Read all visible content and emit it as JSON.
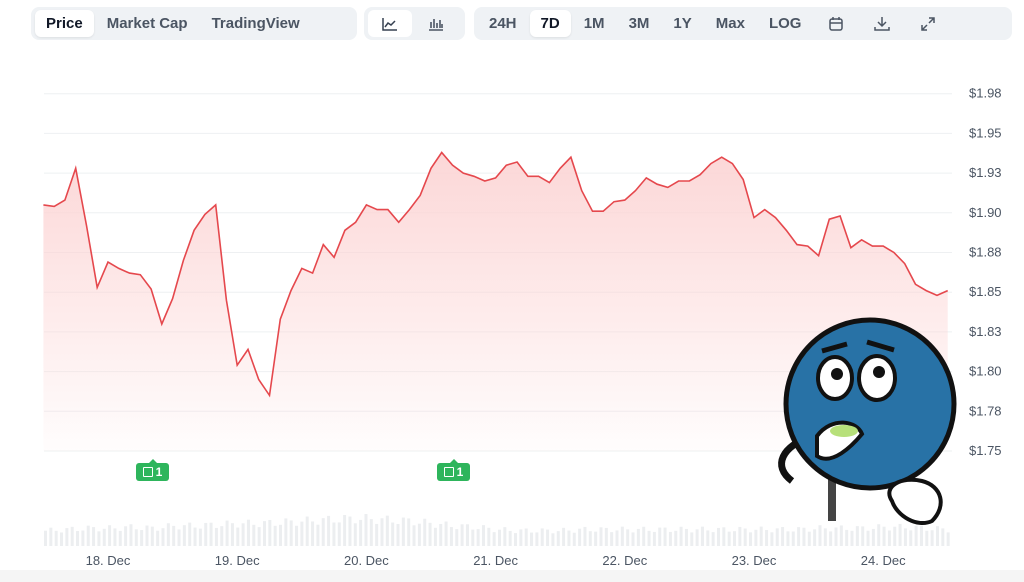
{
  "toolbar": {
    "view_tabs": [
      {
        "label": "Price",
        "active": true
      },
      {
        "label": "Market Cap",
        "active": false
      },
      {
        "label": "TradingView",
        "active": false
      }
    ],
    "chart_type_icons": [
      {
        "icon": "line-chart-icon",
        "active": true
      },
      {
        "icon": "candlestick-chart-icon",
        "active": false
      }
    ],
    "ranges": [
      {
        "label": "24H",
        "active": false
      },
      {
        "label": "7D",
        "active": true
      },
      {
        "label": "1M",
        "active": false
      },
      {
        "label": "3M",
        "active": false
      },
      {
        "label": "1Y",
        "active": false
      },
      {
        "label": "Max",
        "active": false
      },
      {
        "label": "LOG",
        "active": false
      }
    ],
    "action_icons": [
      "calendar-icon",
      "download-icon",
      "expand-icon"
    ]
  },
  "news_markers": [
    {
      "date": "18 Dec 08:00",
      "count": "1"
    },
    {
      "date": "20 Dec 20:00",
      "count": "1"
    }
  ],
  "chart_data": {
    "type": "area",
    "line_color": "#e5484d",
    "fill_color": "#fcd5d5",
    "grid": true,
    "ylim": [
      1.725,
      1.995
    ],
    "y_ticks": [
      {
        "v": 1.975,
        "label": "$1.98"
      },
      {
        "v": 1.95,
        "label": "$1.95"
      },
      {
        "v": 1.925,
        "label": "$1.93"
      },
      {
        "v": 1.9,
        "label": "$1.90"
      },
      {
        "v": 1.875,
        "label": "$1.88"
      },
      {
        "v": 1.85,
        "label": "$1.85"
      },
      {
        "v": 1.825,
        "label": "$1.83"
      },
      {
        "v": 1.8,
        "label": "$1.80"
      },
      {
        "v": 1.775,
        "label": "$1.78"
      },
      {
        "v": 1.75,
        "label": "$1.75"
      }
    ],
    "x_ticks": [
      "18. Dec",
      "19. Dec",
      "20. Dec",
      "21. Dec",
      "22. Dec",
      "23. Dec",
      "24. Dec"
    ],
    "points": [
      [
        "17 Dec 12:00",
        1.905
      ],
      [
        "17 Dec 14:00",
        1.904
      ],
      [
        "17 Dec 16:00",
        1.908
      ],
      [
        "17 Dec 18:00",
        1.928
      ],
      [
        "17 Dec 20:00",
        1.892
      ],
      [
        "17 Dec 22:00",
        1.853
      ],
      [
        "18 Dec 00:00",
        1.869
      ],
      [
        "18 Dec 02:00",
        1.865
      ],
      [
        "18 Dec 04:00",
        1.862
      ],
      [
        "18 Dec 06:00",
        1.861
      ],
      [
        "18 Dec 08:00",
        1.852
      ],
      [
        "18 Dec 10:00",
        1.83
      ],
      [
        "18 Dec 12:00",
        1.846
      ],
      [
        "18 Dec 14:00",
        1.87
      ],
      [
        "18 Dec 16:00",
        1.889
      ],
      [
        "18 Dec 18:00",
        1.899
      ],
      [
        "18 Dec 20:00",
        1.905
      ],
      [
        "18 Dec 22:00",
        1.845
      ],
      [
        "19 Dec 00:00",
        1.804
      ],
      [
        "19 Dec 02:00",
        1.814
      ],
      [
        "19 Dec 04:00",
        1.795
      ],
      [
        "19 Dec 06:00",
        1.785
      ],
      [
        "19 Dec 08:00",
        1.833
      ],
      [
        "19 Dec 10:00",
        1.851
      ],
      [
        "19 Dec 12:00",
        1.865
      ],
      [
        "19 Dec 14:00",
        1.862
      ],
      [
        "19 Dec 16:00",
        1.88
      ],
      [
        "19 Dec 18:00",
        1.872
      ],
      [
        "19 Dec 20:00",
        1.889
      ],
      [
        "19 Dec 22:00",
        1.894
      ],
      [
        "20 Dec 00:00",
        1.905
      ],
      [
        "20 Dec 02:00",
        1.902
      ],
      [
        "20 Dec 04:00",
        1.902
      ],
      [
        "20 Dec 06:00",
        1.894
      ],
      [
        "20 Dec 08:00",
        1.902
      ],
      [
        "20 Dec 10:00",
        1.911
      ],
      [
        "20 Dec 12:00",
        1.928
      ],
      [
        "20 Dec 14:00",
        1.938
      ],
      [
        "20 Dec 16:00",
        1.93
      ],
      [
        "20 Dec 18:00",
        1.925
      ],
      [
        "20 Dec 20:00",
        1.923
      ],
      [
        "20 Dec 22:00",
        1.92
      ],
      [
        "21 Dec 00:00",
        1.922
      ],
      [
        "21 Dec 02:00",
        1.93
      ],
      [
        "21 Dec 04:00",
        1.932
      ],
      [
        "21 Dec 06:00",
        1.923
      ],
      [
        "21 Dec 08:00",
        1.923
      ],
      [
        "21 Dec 10:00",
        1.919
      ],
      [
        "21 Dec 12:00",
        1.928
      ],
      [
        "21 Dec 14:00",
        1.935
      ],
      [
        "21 Dec 16:00",
        1.914
      ],
      [
        "21 Dec 18:00",
        1.901
      ],
      [
        "21 Dec 20:00",
        1.901
      ],
      [
        "21 Dec 22:00",
        1.907
      ],
      [
        "22 Dec 00:00",
        1.908
      ],
      [
        "22 Dec 02:00",
        1.914
      ],
      [
        "22 Dec 04:00",
        1.922
      ],
      [
        "22 Dec 06:00",
        1.918
      ],
      [
        "22 Dec 08:00",
        1.916
      ],
      [
        "22 Dec 10:00",
        1.92
      ],
      [
        "22 Dec 12:00",
        1.92
      ],
      [
        "22 Dec 14:00",
        1.924
      ],
      [
        "22 Dec 16:00",
        1.931
      ],
      [
        "22 Dec 18:00",
        1.935
      ],
      [
        "22 Dec 20:00",
        1.931
      ],
      [
        "22 Dec 22:00",
        1.921
      ],
      [
        "23 Dec 00:00",
        1.897
      ],
      [
        "23 Dec 02:00",
        1.902
      ],
      [
        "23 Dec 04:00",
        1.897
      ],
      [
        "23 Dec 06:00",
        1.889
      ],
      [
        "23 Dec 08:00",
        1.88
      ],
      [
        "23 Dec 10:00",
        1.879
      ],
      [
        "23 Dec 12:00",
        1.873
      ],
      [
        "23 Dec 14:00",
        1.896
      ],
      [
        "23 Dec 16:00",
        1.898
      ],
      [
        "23 Dec 18:00",
        1.878
      ],
      [
        "23 Dec 20:00",
        1.883
      ],
      [
        "23 Dec 22:00",
        1.879
      ],
      [
        "24 Dec 00:00",
        1.879
      ],
      [
        "24 Dec 02:00",
        1.875
      ],
      [
        "24 Dec 04:00",
        1.868
      ],
      [
        "24 Dec 06:00",
        1.855
      ],
      [
        "24 Dec 08:00",
        1.851
      ],
      [
        "24 Dec 10:00",
        1.848
      ],
      [
        "24 Dec 12:00",
        1.851
      ]
    ],
    "volume_relative": [
      0.5,
      0.55,
      0.6,
      0.6,
      0.65,
      0.6,
      0.7,
      0.7,
      0.75,
      0.8,
      0.8,
      0.85,
      0.9,
      0.95,
      1.0,
      1.0,
      0.95,
      0.9,
      0.8,
      0.7,
      0.65,
      0.55,
      0.5,
      0.5,
      0.5,
      0.55,
      0.55,
      0.55,
      0.55,
      0.55,
      0.55,
      0.55,
      0.55,
      0.55,
      0.55,
      0.55,
      0.6,
      0.6,
      0.6,
      0.65,
      0.65,
      0.6,
      0.55
    ]
  }
}
